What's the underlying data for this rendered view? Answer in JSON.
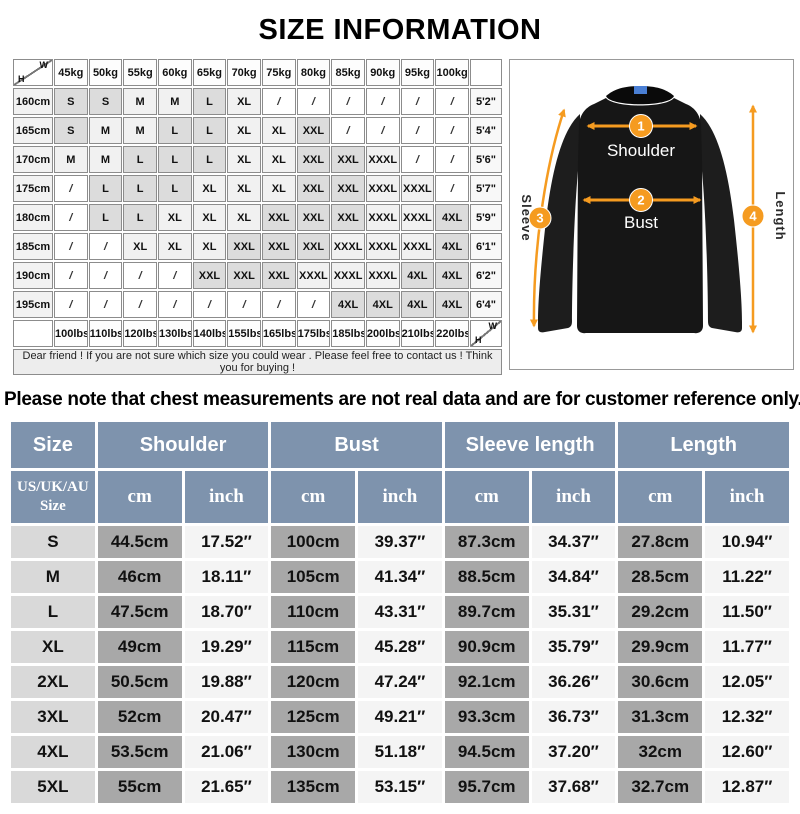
{
  "title": "SIZE INFORMATION",
  "colors": {
    "accent_orange": "#F59B20",
    "header_blue": "#7e93ad",
    "cm_cell_gray": "#a8a8a8",
    "size_cell_gray": "#d9d9d9",
    "inch_cell_gray": "#f4f4f4",
    "shirt_black": "#1b1b1b",
    "collar_tag_blue": "#4a7fd4"
  },
  "matrix": {
    "corner": {
      "top_right": "W",
      "bottom_left": "H"
    },
    "weights": [
      "45kg",
      "50kg",
      "55kg",
      "60kg",
      "65kg",
      "70kg",
      "75kg",
      "80kg",
      "85kg",
      "90kg",
      "95kg",
      "100kg"
    ],
    "shade_dark": [
      "S",
      "L",
      "XXL",
      "4XL"
    ],
    "shade_light": [
      "M",
      "XL",
      "XXXL"
    ],
    "rows": [
      {
        "height": "160cm",
        "cells": [
          "S",
          "S",
          "M",
          "M",
          "L",
          "XL",
          "/",
          "/",
          "/",
          "/",
          "/",
          "/"
        ],
        "feet": "5'2\""
      },
      {
        "height": "165cm",
        "cells": [
          "S",
          "M",
          "M",
          "L",
          "L",
          "XL",
          "XL",
          "XXL",
          "/",
          "/",
          "/",
          "/"
        ],
        "feet": "5'4\""
      },
      {
        "height": "170cm",
        "cells": [
          "M",
          "M",
          "L",
          "L",
          "L",
          "XL",
          "XL",
          "XXL",
          "XXL",
          "XXXL",
          "/",
          "/"
        ],
        "feet": "5'6\""
      },
      {
        "height": "175cm",
        "cells": [
          "/",
          "L",
          "L",
          "L",
          "XL",
          "XL",
          "XL",
          "XXL",
          "XXL",
          "XXXL",
          "XXXL",
          "/"
        ],
        "feet": "5'7\""
      },
      {
        "height": "180cm",
        "cells": [
          "/",
          "L",
          "L",
          "XL",
          "XL",
          "XL",
          "XXL",
          "XXL",
          "XXL",
          "XXXL",
          "XXXL",
          "4XL"
        ],
        "feet": "5'9\""
      },
      {
        "height": "185cm",
        "cells": [
          "/",
          "/",
          "XL",
          "XL",
          "XL",
          "XXL",
          "XXL",
          "XXL",
          "XXXL",
          "XXXL",
          "XXXL",
          "4XL"
        ],
        "feet": "6'1\""
      },
      {
        "height": "190cm",
        "cells": [
          "/",
          "/",
          "/",
          "/",
          "XXL",
          "XXL",
          "XXL",
          "XXXL",
          "XXXL",
          "XXXL",
          "4XL",
          "4XL"
        ],
        "feet": "6'2\""
      },
      {
        "height": "195cm",
        "cells": [
          "/",
          "/",
          "/",
          "/",
          "/",
          "/",
          "/",
          "/",
          "4XL",
          "4XL",
          "4XL",
          "4XL"
        ],
        "feet": "6'4\""
      }
    ],
    "pounds": [
      "100lbs",
      "110lbs",
      "120lbs",
      "130lbs",
      "140lbs",
      "155lbs",
      "165lbs",
      "175lbs",
      "185lbs",
      "200lbs",
      "210lbs",
      "220lbs"
    ],
    "note": "Dear friend ! If you are not sure which size you could wear . Please feel free to contact us ! Think you for buying !"
  },
  "diagram": {
    "shoulder_label": "Shoulder",
    "bust_label": "Bust",
    "sleeve_label": "Sleeve",
    "length_label": "Length",
    "marker_1": "1",
    "marker_2": "2",
    "marker_3": "3",
    "marker_4": "4"
  },
  "notice": "Please note that chest measurements are not real data and are for customer reference only.",
  "size_table": {
    "header": {
      "size": "Size",
      "groups": [
        "Shoulder",
        "Bust",
        "Sleeve length",
        "Length"
      ],
      "sub_size": "US/UK/AU Size",
      "unit_cm": "cm",
      "unit_inch": "inch"
    },
    "rows": [
      {
        "size": "S",
        "cells": [
          "44.5cm",
          "17.52″",
          "100cm",
          "39.37″",
          "87.3cm",
          "34.37″",
          "27.8cm",
          "10.94″"
        ]
      },
      {
        "size": "M",
        "cells": [
          "46cm",
          "18.11″",
          "105cm",
          "41.34″",
          "88.5cm",
          "34.84″",
          "28.5cm",
          "11.22″"
        ]
      },
      {
        "size": "L",
        "cells": [
          "47.5cm",
          "18.70″",
          "110cm",
          "43.31″",
          "89.7cm",
          "35.31″",
          "29.2cm",
          "11.50″"
        ]
      },
      {
        "size": "XL",
        "cells": [
          "49cm",
          "19.29″",
          "115cm",
          "45.28″",
          "90.9cm",
          "35.79″",
          "29.9cm",
          "11.77″"
        ]
      },
      {
        "size": "2XL",
        "cells": [
          "50.5cm",
          "19.88″",
          "120cm",
          "47.24″",
          "92.1cm",
          "36.26″",
          "30.6cm",
          "12.05″"
        ]
      },
      {
        "size": "3XL",
        "cells": [
          "52cm",
          "20.47″",
          "125cm",
          "49.21″",
          "93.3cm",
          "36.73″",
          "31.3cm",
          "12.32″"
        ]
      },
      {
        "size": "4XL",
        "cells": [
          "53.5cm",
          "21.06″",
          "130cm",
          "51.18″",
          "94.5cm",
          "37.20″",
          "32cm",
          "12.60″"
        ]
      },
      {
        "size": "5XL",
        "cells": [
          "55cm",
          "21.65″",
          "135cm",
          "53.15″",
          "95.7cm",
          "37.68″",
          "32.7cm",
          "12.87″"
        ]
      }
    ]
  }
}
